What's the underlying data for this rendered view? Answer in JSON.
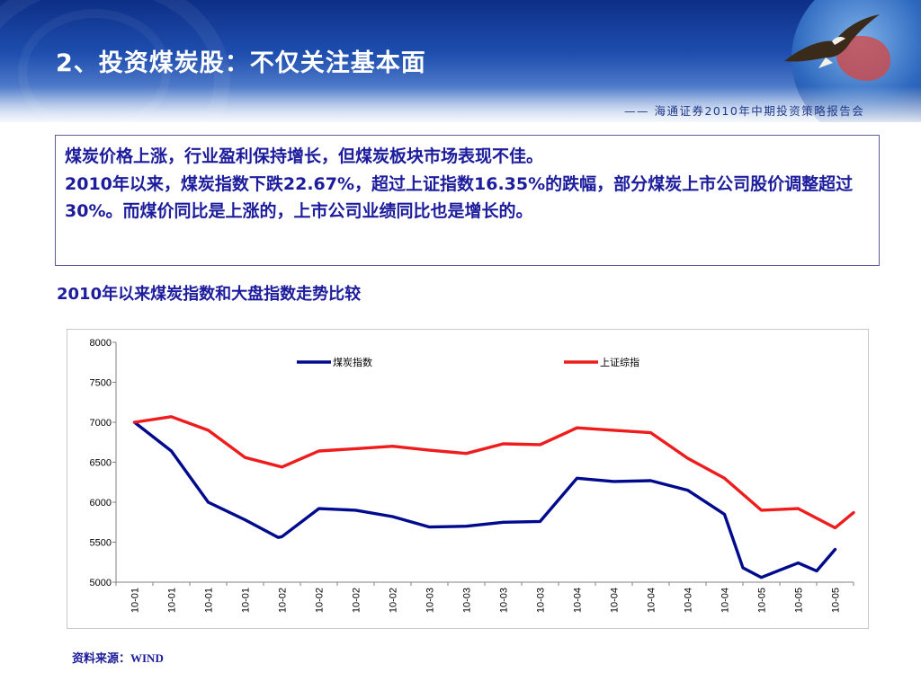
{
  "slide": {
    "title": "2、投资煤炭股：不仅关注基本面",
    "subtitle": "—— 海通证券2010年中期投资策略报告会"
  },
  "text_box": {
    "line1": "煤炭价格上涨，行业盈利保持增长，但煤炭板块市场表现不佳。",
    "line2": "2010年以来，煤炭指数下跌22.67%，超过上证指数16.35%的跌幅，部分煤炭上市公司股价调整超过30%。而煤价同比是上涨的，上市公司业绩同比也是增长的。"
  },
  "chart_caption": "2010年以来煤炭指数和大盘指数走势比较",
  "source": "资料来源：WIND",
  "colors": {
    "coal": "#000a8c",
    "shcomp": "#ee1c1c",
    "text": "#1c1c9c"
  },
  "chart_data": {
    "type": "line",
    "title": "",
    "xlabel": "",
    "ylabel": "",
    "ylim": [
      5000,
      8000
    ],
    "yticks": [
      5000,
      5500,
      6000,
      6500,
      7000,
      7500,
      8000
    ],
    "legend": "top",
    "grid": false,
    "categories": [
      "10-01",
      "10-01",
      "10-01",
      "10-01",
      "10-02",
      "10-02",
      "10-02",
      "10-02",
      "10-03",
      "10-03",
      "10-03",
      "10-03",
      "10-04",
      "10-04",
      "10-04",
      "10-04",
      "10-04",
      "10-05",
      "10-05",
      "10-05"
    ],
    "series": [
      {
        "name": "煤炭指数",
        "color": "#000a8c",
        "x": [
          0,
          1,
          2,
          3,
          3.9,
          4,
          5,
          6,
          7,
          8,
          9,
          10,
          11,
          12,
          13,
          14,
          15,
          16,
          16.5,
          17,
          17.5,
          18,
          18.5,
          19
        ],
        "values": [
          7000,
          6640,
          6000,
          5780,
          5560,
          5570,
          5920,
          5900,
          5820,
          5690,
          5700,
          5750,
          5760,
          6300,
          6260,
          6270,
          6150,
          5850,
          5180,
          5060,
          5150,
          5240,
          5140,
          5410
        ]
      },
      {
        "name": "上证综指",
        "color": "#ee1c1c",
        "x": [
          0,
          1,
          2,
          3,
          4,
          5,
          6,
          7,
          8,
          9,
          10,
          11,
          12,
          13,
          14,
          15,
          16,
          17,
          18,
          19,
          19.5
        ],
        "values": [
          7000,
          7070,
          6900,
          6560,
          6440,
          6640,
          6670,
          6700,
          6650,
          6610,
          6730,
          6720,
          6930,
          6900,
          6870,
          6550,
          6300,
          5900,
          5920,
          5680,
          5870
        ]
      }
    ]
  }
}
